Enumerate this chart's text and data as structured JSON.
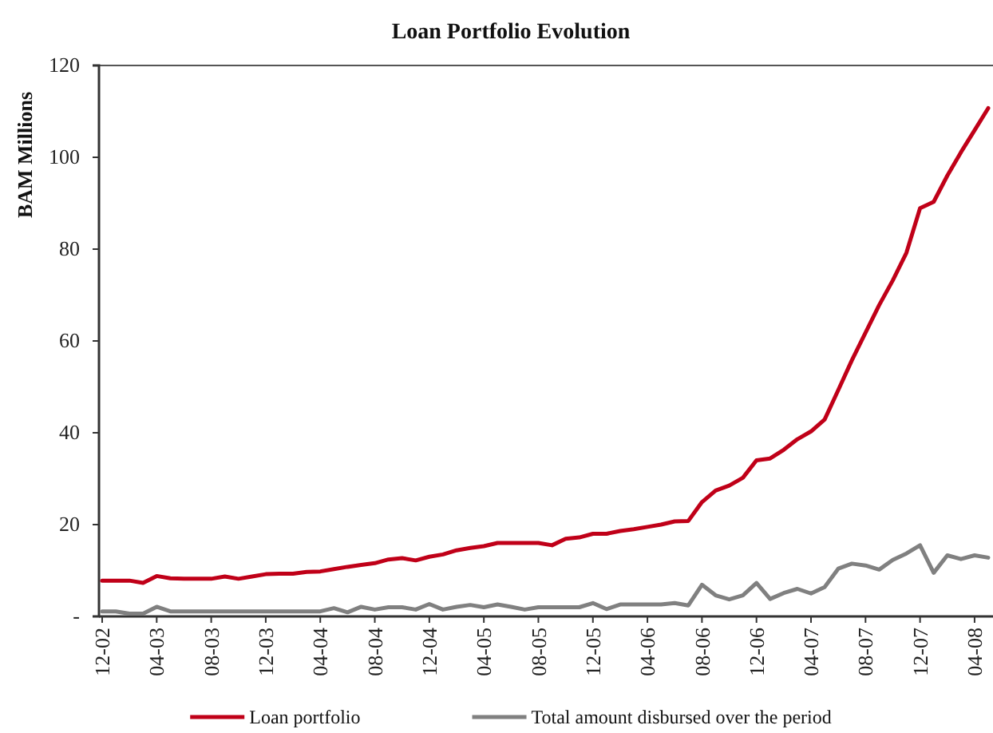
{
  "chart_data": {
    "type": "line",
    "title": "Loan Portfolio Evolution",
    "ylabel": "BAM Millions",
    "categories": [
      "12-02",
      null,
      null,
      null,
      "04-03",
      null,
      null,
      null,
      "08-03",
      null,
      null,
      null,
      "12-03",
      null,
      null,
      null,
      "04-04",
      null,
      null,
      null,
      "08-04",
      null,
      null,
      null,
      "12-04",
      null,
      null,
      null,
      "04-05",
      null,
      null,
      null,
      "08-05",
      null,
      null,
      null,
      "12-05",
      null,
      null,
      null,
      "04-06",
      null,
      null,
      null,
      "08-06",
      null,
      null,
      null,
      "12-06",
      null,
      null,
      null,
      "04-07",
      null,
      null,
      null,
      "08-07",
      null,
      null,
      null,
      "12-07",
      null,
      null,
      null,
      "04-08",
      null
    ],
    "series": [
      {
        "name": "Loan portfolio",
        "color": "#c00018",
        "values": [
          7.8,
          7.8,
          7.8,
          7.3,
          8.8,
          8.3,
          8.2,
          8.2,
          8.2,
          8.7,
          8.2,
          8.7,
          9.2,
          9.3,
          9.3,
          9.7,
          9.8,
          10.3,
          10.8,
          11.2,
          11.6,
          12.4,
          12.7,
          12.2,
          13.0,
          13.5,
          14.4,
          14.9,
          15.3,
          16.0,
          16.0,
          16.0,
          16.0,
          15.5,
          16.9,
          17.2,
          18.0,
          18.0,
          18.6,
          19.0,
          19.5,
          20.0,
          20.7,
          20.8,
          24.9,
          27.4,
          28.5,
          30.2,
          34.0,
          34.4,
          36.3,
          38.6,
          40.3,
          42.9,
          49.3,
          55.8,
          61.8,
          67.8,
          73.2,
          79.2,
          88.9,
          90.3,
          96.0,
          101.1,
          105.9,
          110.7
        ]
      },
      {
        "name": "Total amount disbursed over the period",
        "color": "#808080",
        "values": [
          1.1,
          1.1,
          0.6,
          0.6,
          2.1,
          1.1,
          1.1,
          1.1,
          1.1,
          1.1,
          1.1,
          1.1,
          1.1,
          1.1,
          1.1,
          1.1,
          1.1,
          1.8,
          0.9,
          2.1,
          1.5,
          2.0,
          2.0,
          1.5,
          2.7,
          1.5,
          2.1,
          2.5,
          2.0,
          2.6,
          2.1,
          1.5,
          2.0,
          2.0,
          2.0,
          2.0,
          2.9,
          1.6,
          2.6,
          2.6,
          2.6,
          2.6,
          2.9,
          2.4,
          6.9,
          4.6,
          3.7,
          4.6,
          7.3,
          3.8,
          5.1,
          6.0,
          5.0,
          6.4,
          10.4,
          11.5,
          11.1,
          10.2,
          12.3,
          13.7,
          15.5,
          9.5,
          13.3,
          12.5,
          13.3,
          12.8
        ]
      }
    ],
    "ylim": [
      0,
      120
    ],
    "yticks": [
      {
        "value": 0,
        "label": "-"
      },
      20,
      40,
      60,
      80,
      100,
      120
    ],
    "legend": "bottom"
  }
}
